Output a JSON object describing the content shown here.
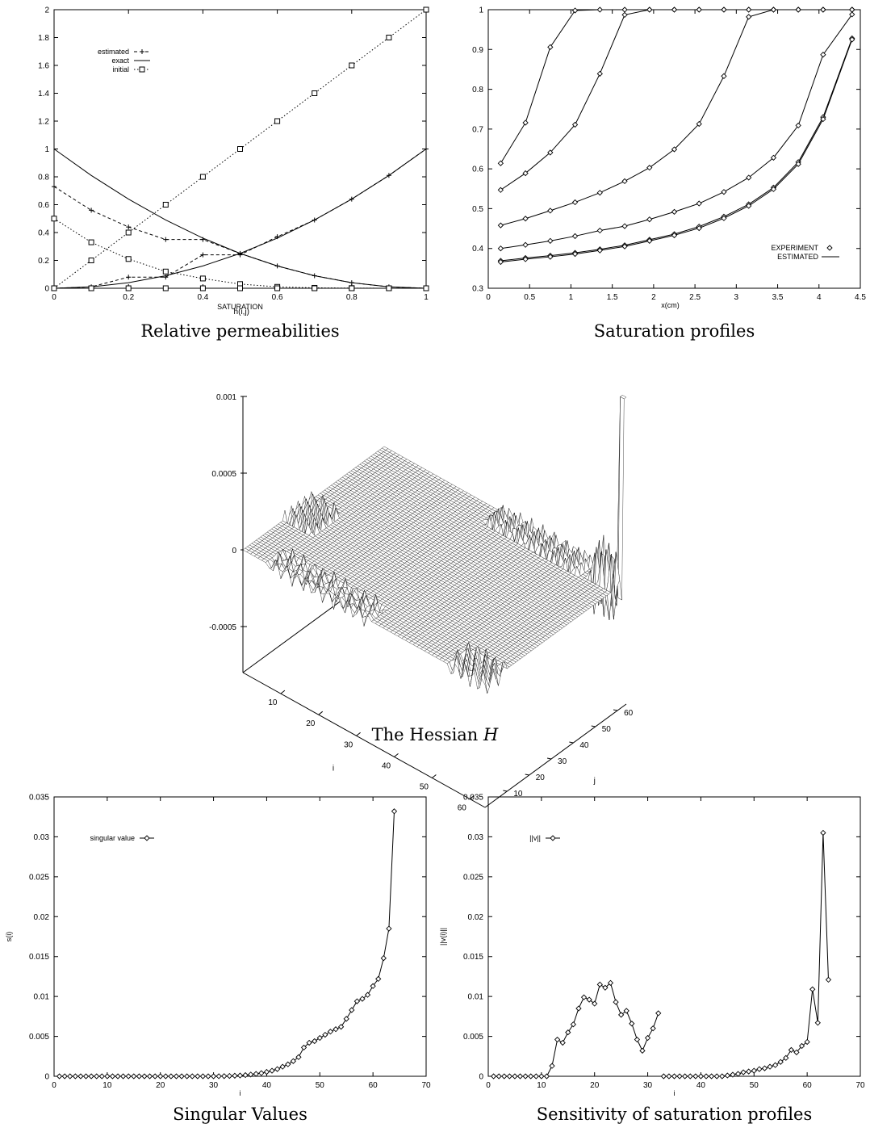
{
  "chart_data": [
    {
      "id": "relperm",
      "type": "line",
      "caption": "Relative permeabilities",
      "xlabel": "SATURATION",
      "ylabel": "",
      "xlim": [
        0,
        1
      ],
      "ylim": [
        0,
        2
      ],
      "xticks": [
        0,
        0.2,
        0.4,
        0.6,
        0.8,
        1
      ],
      "yticks": [
        0,
        0.2,
        0.4,
        0.6,
        0.8,
        1,
        1.2,
        1.4,
        1.6,
        1.8,
        2
      ],
      "legend_position": "top-left",
      "series": [
        {
          "name": "estimated",
          "marker": "plus",
          "style": "dashed",
          "x": [
            0,
            0.1,
            0.2,
            0.3,
            0.4,
            0.5,
            0.6,
            0.7,
            0.8,
            0.9,
            1.0
          ],
          "y": [
            0.73,
            0.56,
            0.44,
            0.35,
            0.35,
            0.25,
            0.16,
            0.09,
            0.04,
            0.01,
            0
          ]
        },
        {
          "name": "estimated",
          "marker": "plus",
          "style": "dashed",
          "x": [
            0,
            0.1,
            0.2,
            0.3,
            0.4,
            0.5,
            0.6,
            0.7,
            0.8,
            0.9,
            1.0
          ],
          "y": [
            0,
            0.01,
            0.08,
            0.08,
            0.24,
            0.24,
            0.37,
            0.49,
            0.64,
            0.81,
            1.0
          ]
        },
        {
          "name": "exact",
          "marker": "none",
          "style": "solid",
          "x": [
            0,
            0.1,
            0.2,
            0.3,
            0.4,
            0.5,
            0.6,
            0.7,
            0.8,
            0.9,
            1.0
          ],
          "y": [
            1.0,
            0.81,
            0.64,
            0.49,
            0.36,
            0.25,
            0.16,
            0.09,
            0.04,
            0.01,
            0
          ]
        },
        {
          "name": "exact",
          "marker": "none",
          "style": "solid",
          "x": [
            0,
            0.1,
            0.2,
            0.3,
            0.4,
            0.5,
            0.6,
            0.7,
            0.8,
            0.9,
            1.0
          ],
          "y": [
            0,
            0.01,
            0.04,
            0.09,
            0.16,
            0.25,
            0.36,
            0.49,
            0.64,
            0.81,
            1.0
          ]
        },
        {
          "name": "initial",
          "marker": "square",
          "style": "dotted",
          "x": [
            0,
            0.1,
            0.2,
            0.3,
            0.4,
            0.5,
            0.6,
            0.7,
            0.8,
            0.9,
            1.0
          ],
          "y": [
            0,
            0.2,
            0.4,
            0.6,
            0.8,
            1.0,
            1.2,
            1.4,
            1.6,
            1.8,
            2.0
          ]
        },
        {
          "name": "initial",
          "marker": "square",
          "style": "dotted",
          "x": [
            0,
            0.1,
            0.2,
            0.3,
            0.4,
            0.5,
            0.6,
            0.7,
            0.8,
            0.9,
            1.0
          ],
          "y": [
            0.5,
            0.33,
            0.21,
            0.12,
            0.07,
            0.03,
            0.01,
            0.003,
            0.001,
            0,
            0
          ]
        },
        {
          "name": "initial",
          "marker": "square",
          "style": "dotted",
          "x": [
            0,
            0.1,
            0.2,
            0.3,
            0.4,
            0.5,
            0.6,
            0.7,
            0.8,
            0.9,
            1.0
          ],
          "y": [
            0,
            0,
            0,
            0,
            0,
            0,
            0,
            0,
            0,
            0,
            0
          ]
        }
      ],
      "legend": [
        {
          "label": "estimated",
          "marker": "plus",
          "style": "dashed"
        },
        {
          "label": "exact",
          "marker": "none",
          "style": "solid"
        },
        {
          "label": "initial",
          "marker": "square",
          "style": "dotted"
        }
      ]
    },
    {
      "id": "satprof",
      "type": "line",
      "caption": "Saturation profiles",
      "xlabel": "x(cm)",
      "ylabel": "",
      "xlim": [
        0,
        4.5
      ],
      "ylim": [
        0.3,
        1
      ],
      "xticks": [
        0,
        0.5,
        1,
        1.5,
        2,
        2.5,
        3,
        3.5,
        4,
        4.5
      ],
      "yticks": [
        0.3,
        0.4,
        0.5,
        0.6,
        0.7,
        0.8,
        0.9,
        1
      ],
      "legend_position": "bottom-right",
      "legend": [
        {
          "label": "EXPERIMENT",
          "marker": "diamond",
          "style": "none"
        },
        {
          "label": "ESTIMATED",
          "marker": "none",
          "style": "solid"
        }
      ],
      "x": [
        0.15,
        0.45,
        0.75,
        1.05,
        1.35,
        1.65,
        1.95,
        2.25,
        2.55,
        2.85,
        3.15,
        3.45,
        3.75,
        4.05,
        4.4
      ],
      "series": [
        {
          "name": "EXPERIMENT",
          "y": [
            0.614,
            0.716,
            0.906,
            0.998,
            1.0,
            1.0,
            1.0,
            1.0,
            1.0,
            1.0,
            1.0,
            1.0,
            1.0,
            1.0,
            1.0
          ]
        },
        {
          "name": "EXPERIMENT",
          "y": [
            0.547,
            0.589,
            0.641,
            0.711,
            0.839,
            0.987,
            1.0,
            1.0,
            1.0,
            1.0,
            1.0,
            1.0,
            1.0,
            1.0,
            1.0
          ]
        },
        {
          "name": "EXPERIMENT",
          "y": [
            0.458,
            0.475,
            0.495,
            0.516,
            0.54,
            0.569,
            0.603,
            0.649,
            0.713,
            0.833,
            0.982,
            1.0,
            1.0,
            1.0,
            1.0
          ]
        },
        {
          "name": "EXPERIMENT",
          "y": [
            0.4,
            0.409,
            0.419,
            0.431,
            0.445,
            0.456,
            0.473,
            0.492,
            0.513,
            0.542,
            0.578,
            0.628,
            0.709,
            0.887,
            0.988
          ]
        },
        {
          "name": "EXPERIMENT",
          "y": [
            0.369,
            0.376,
            0.382,
            0.389,
            0.398,
            0.408,
            0.422,
            0.436,
            0.455,
            0.48,
            0.511,
            0.553,
            0.617,
            0.73,
            0.928
          ]
        },
        {
          "name": "EXPERIMENT",
          "y": [
            0.366,
            0.373,
            0.379,
            0.386,
            0.395,
            0.405,
            0.419,
            0.433,
            0.451,
            0.476,
            0.507,
            0.549,
            0.612,
            0.725,
            0.925
          ]
        }
      ]
    },
    {
      "id": "hessian",
      "type": "surface",
      "caption": "The Hessian",
      "caption_symbol": "H",
      "zlabel": "h(i,j)",
      "xlabel": "i",
      "ylabel": "j",
      "zticks": [
        0.001,
        0.0005,
        0,
        -0.0005
      ],
      "zlim": [
        -0.0008,
        0.001
      ],
      "xticks": [
        10,
        20,
        30,
        40,
        50,
        60
      ],
      "yticks": [
        10,
        20,
        30,
        40,
        50,
        60
      ],
      "grid_size": 64
    },
    {
      "id": "singular",
      "type": "line",
      "caption": "Singular Values",
      "xlabel": "i",
      "ylabel": "s(i)",
      "xlim": [
        0,
        70
      ],
      "ylim": [
        0,
        0.035
      ],
      "xticks": [
        0,
        10,
        20,
        30,
        40,
        50,
        60,
        70
      ],
      "yticks": [
        0,
        0.005,
        0.01,
        0.015,
        0.02,
        0.025,
        0.03,
        0.035
      ],
      "legend_position": "top-left",
      "legend": [
        {
          "label": "singular value",
          "marker": "diamond",
          "style": "solid"
        }
      ],
      "series": [
        {
          "name": "singular value",
          "x": [
            1,
            2,
            3,
            4,
            5,
            6,
            7,
            8,
            9,
            10,
            11,
            12,
            13,
            14,
            15,
            16,
            17,
            18,
            19,
            20,
            21,
            22,
            23,
            24,
            25,
            26,
            27,
            28,
            29,
            30,
            31,
            32,
            33,
            34,
            35,
            36,
            37,
            38,
            39,
            40,
            41,
            42,
            43,
            44,
            45,
            46,
            47,
            48,
            49,
            50,
            51,
            52,
            53,
            54,
            55,
            56,
            57,
            58,
            59,
            60,
            61,
            62,
            63,
            64
          ],
          "y": [
            0,
            0,
            0,
            0,
            0,
            0,
            0,
            0,
            0,
            0,
            0,
            0,
            0,
            0,
            0,
            0,
            0,
            0,
            0,
            0,
            0,
            0,
            0,
            0,
            0,
            0,
            0,
            0,
            0,
            0,
            1e-05,
            2e-05,
            4e-05,
            7e-05,
            0.0001,
            0.00015,
            0.00022,
            0.0003,
            0.0004,
            0.00055,
            0.0007,
            0.0009,
            0.0012,
            0.0015,
            0.0019,
            0.0024,
            0.0036,
            0.0042,
            0.0044,
            0.0048,
            0.0052,
            0.0056,
            0.0059,
            0.0062,
            0.0072,
            0.0083,
            0.0094,
            0.0097,
            0.0102,
            0.0113,
            0.0122,
            0.0148,
            0.0185,
            0.0332
          ]
        }
      ]
    },
    {
      "id": "sensitivity",
      "type": "line",
      "caption": "Sensitivity of saturation profiles",
      "xlabel": "i",
      "ylabel": "||v(i)||",
      "xlim": [
        0,
        70
      ],
      "ylim": [
        0,
        0.035
      ],
      "xticks": [
        0,
        10,
        20,
        30,
        40,
        50,
        60,
        70
      ],
      "yticks": [
        0,
        0.005,
        0.01,
        0.015,
        0.02,
        0.025,
        0.03,
        0.035
      ],
      "legend_position": "top-left",
      "legend": [
        {
          "label": "||v||",
          "marker": "diamond",
          "style": "solid"
        }
      ],
      "series": [
        {
          "name": "||v||",
          "x": [
            1,
            2,
            3,
            4,
            5,
            6,
            7,
            8,
            9,
            10,
            11,
            12,
            13,
            14,
            15,
            16,
            17,
            18,
            19,
            20,
            21,
            22,
            23,
            24,
            25,
            26,
            27,
            28,
            29,
            30,
            31,
            32
          ],
          "y": [
            0,
            0,
            0,
            0,
            0,
            0,
            0,
            0,
            0,
            0,
            0,
            0.0013,
            0.0046,
            0.0042,
            0.0055,
            0.0065,
            0.0085,
            0.0099,
            0.0096,
            0.0091,
            0.0115,
            0.0111,
            0.0117,
            0.0093,
            0.0077,
            0.0082,
            0.0066,
            0.0046,
            0.0032,
            0.0048,
            0.006,
            0.0079
          ]
        },
        {
          "name": "||v||",
          "x": [
            33,
            34,
            35,
            36,
            37,
            38,
            39,
            40,
            41,
            42,
            43,
            44,
            45,
            46,
            47,
            48,
            49,
            50,
            51,
            52,
            53,
            54,
            55,
            56,
            57,
            58,
            59,
            60,
            61,
            62,
            63,
            64
          ],
          "y": [
            0,
            0,
            0,
            0,
            0,
            0,
            0,
            0,
            0,
            0,
            0,
            0,
            0.0001,
            0.0002,
            0.0003,
            0.0005,
            0.0006,
            0.0007,
            0.0009,
            0.001,
            0.0012,
            0.0014,
            0.0018,
            0.0023,
            0.0033,
            0.003,
            0.0038,
            0.0043,
            0.0109,
            0.0067,
            0.0305,
            0.0121
          ]
        }
      ]
    }
  ]
}
